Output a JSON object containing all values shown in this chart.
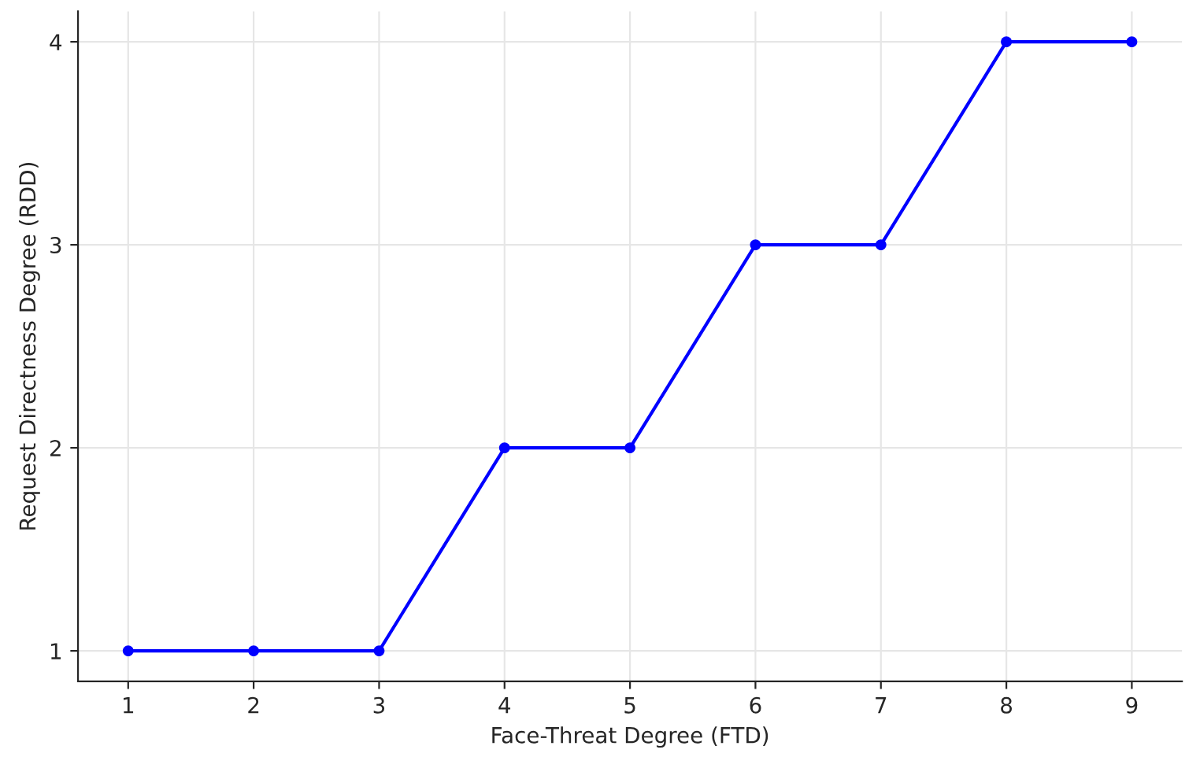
{
  "chart_data": {
    "type": "line",
    "xlabel": "Face-Threat Degree (FTD)",
    "ylabel": "Request Directness Degree (RDD)",
    "x": [
      1,
      2,
      3,
      4,
      5,
      6,
      7,
      8,
      9
    ],
    "series": [
      {
        "color": "#0000ff",
        "values": [
          1,
          1,
          1,
          2,
          2,
          3,
          3,
          4,
          4
        ]
      }
    ],
    "xlim": [
      0.6,
      9.4
    ],
    "ylim": [
      0.85,
      4.15
    ],
    "xticks": [
      1,
      2,
      3,
      4,
      5,
      6,
      7,
      8,
      9
    ],
    "yticks": [
      1,
      2,
      3,
      4
    ],
    "grid": true,
    "marker": "circle",
    "line_style": "solid"
  }
}
